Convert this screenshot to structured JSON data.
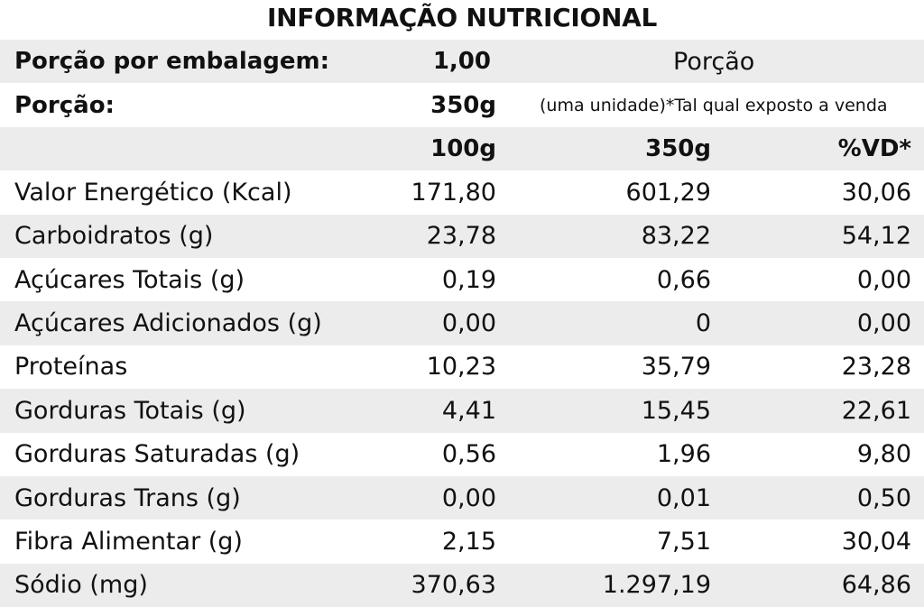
{
  "title": "INFORMAÇÃO NUTRICIONAL",
  "servings_per_package": {
    "label": "Porção por embalagem:",
    "value": "1,00",
    "column_title": "Porção"
  },
  "serving": {
    "label": "Porção:",
    "value": "350g",
    "note": "(uma unidade)*Tal qual exposto a venda"
  },
  "columns": {
    "per_100": "100g",
    "per_350": "350g",
    "vd": "%VD*"
  },
  "nutrients": [
    {
      "name": "Valor Energético (Kcal)",
      "per_100": "171,80",
      "per_350": "601,29",
      "vd": "30,06"
    },
    {
      "name": "Carboidratos (g)",
      "per_100": "23,78",
      "per_350": "83,22",
      "vd": "54,12"
    },
    {
      "name": "Açúcares Totais (g)",
      "per_100": "0,19",
      "per_350": "0,66",
      "vd": "0,00"
    },
    {
      "name": "Açúcares Adicionados (g)",
      "per_100": "0,00",
      "per_350": "0",
      "vd": "0,00"
    },
    {
      "name": "Proteínas",
      "per_100": "10,23",
      "per_350": "35,79",
      "vd": "23,28"
    },
    {
      "name": "Gorduras Totais (g)",
      "per_100": "4,41",
      "per_350": "15,45",
      "vd": "22,61"
    },
    {
      "name": "Gorduras Saturadas (g)",
      "per_100": "0,56",
      "per_350": "1,96",
      "vd": "9,80"
    },
    {
      "name": "Gorduras Trans (g)",
      "per_100": "0,00",
      "per_350": "0,01",
      "vd": "0,50"
    },
    {
      "name": "Fibra Alimentar (g)",
      "per_100": "2,15",
      "per_350": "7,51",
      "vd": "30,04"
    },
    {
      "name": "Sódio (mg)",
      "per_100": "370,63",
      "per_350": "1.297,19",
      "vd": "64,86"
    }
  ],
  "colors": {
    "row_shade": "#ececec",
    "text": "#111111",
    "background": "#ffffff"
  }
}
